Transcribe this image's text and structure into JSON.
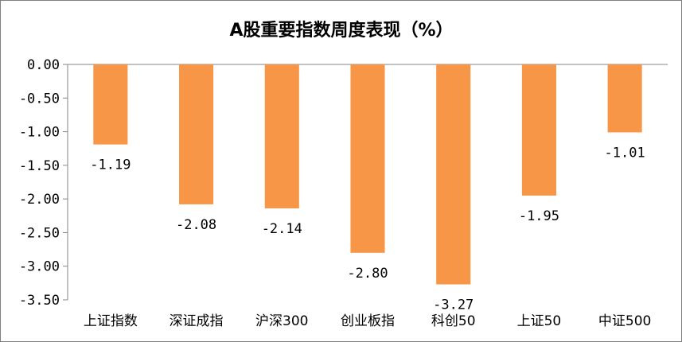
{
  "chart_data": {
    "type": "bar",
    "title": "A股重要指数周度表现（%）",
    "categories": [
      "上证指数",
      "深证成指",
      "沪深300",
      "创业板指",
      "科创50",
      "上证50",
      "中证500"
    ],
    "values": [
      -1.19,
      -2.08,
      -2.14,
      -2.8,
      -3.27,
      -1.95,
      -1.01
    ],
    "value_labels": [
      "-1.19",
      "-2.08",
      "-2.14",
      "-2.80",
      "-3.27",
      "-1.95",
      "-1.01"
    ],
    "y_ticks": [
      0,
      -0.5,
      -1,
      -1.5,
      -2,
      -2.5,
      -3,
      -3.5
    ],
    "y_tick_labels": [
      "0.00",
      "-0.50",
      "-1.00",
      "-1.50",
      "-2.00",
      "-2.50",
      "-3.00",
      "-3.50"
    ],
    "ylim": [
      -3.5,
      0
    ],
    "xlabel": "",
    "ylabel": "",
    "grid": false,
    "legend": "none",
    "bar_color": "#F79646"
  }
}
